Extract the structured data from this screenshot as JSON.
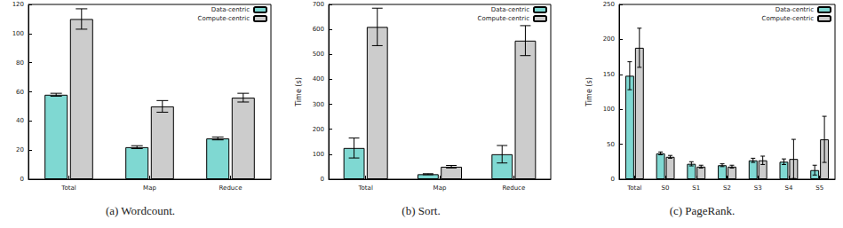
{
  "chart_data": [
    {
      "type": "bar",
      "title": "(a) Wordcount.",
      "categories": [
        "Total",
        "Map",
        "Reduce"
      ],
      "series": [
        {
          "name": "Data-centric",
          "color": "#7fd8d2",
          "values": [
            58,
            22,
            28
          ],
          "errors": [
            1,
            1,
            1
          ]
        },
        {
          "name": "Compute-centric",
          "color": "#cccccc",
          "values": [
            110,
            50,
            56
          ],
          "errors": [
            7,
            4,
            3
          ]
        }
      ],
      "ylim": [
        0,
        120
      ],
      "yticks": [
        0,
        20,
        40,
        60,
        80,
        100,
        120
      ],
      "legend": "upper right",
      "grid": false
    },
    {
      "type": "bar",
      "title": "(b) Sort.",
      "ylabel": "Time (s)",
      "categories": [
        "Total",
        "Map",
        "Reduce"
      ],
      "series": [
        {
          "name": "Data-centric",
          "color": "#7fd8d2",
          "values": [
            125,
            20,
            100
          ],
          "errors": [
            40,
            2,
            35
          ]
        },
        {
          "name": "Compute-centric",
          "color": "#cccccc",
          "values": [
            610,
            50,
            555
          ],
          "errors": [
            75,
            5,
            60
          ]
        }
      ],
      "ylim": [
        0,
        700
      ],
      "yticks": [
        0,
        100,
        200,
        300,
        400,
        500,
        600,
        700
      ],
      "legend": "upper right",
      "grid": false
    },
    {
      "type": "bar",
      "title": "(c) PageRank.",
      "ylabel": "Time (s)",
      "categories": [
        "Total",
        "S0",
        "S1",
        "S2",
        "S3",
        "S4",
        "S5"
      ],
      "series": [
        {
          "name": "Data-centric",
          "color": "#7fd8d2",
          "values": [
            148,
            37,
            22,
            20,
            27,
            25,
            13
          ],
          "errors": [
            20,
            2,
            3,
            2,
            3,
            4,
            7
          ]
        },
        {
          "name": "Compute-centric",
          "color": "#cccccc",
          "values": [
            188,
            32,
            18,
            18,
            27,
            29,
            57
          ],
          "errors": [
            28,
            2,
            2,
            2,
            6,
            28,
            33
          ]
        }
      ],
      "ylim": [
        0,
        250
      ],
      "yticks": [
        0,
        50,
        100,
        150,
        200,
        250
      ],
      "legend": "upper right",
      "grid": false
    }
  ]
}
